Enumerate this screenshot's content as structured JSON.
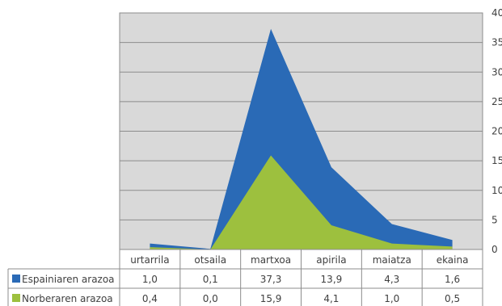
{
  "chart_data": {
    "type": "area",
    "categories": [
      "urtarrila",
      "otsaila",
      "martxoa",
      "apirila",
      "maiatza",
      "ekaina"
    ],
    "series": [
      {
        "name": "Espainiaren arazoa",
        "values": [
          1.0,
          0.1,
          37.3,
          13.9,
          4.3,
          1.6
        ],
        "display": [
          "1,0",
          "0,1",
          "37,3",
          "13,9",
          "4,3",
          "1,6"
        ],
        "color": "#2a6ab6"
      },
      {
        "name": "Norberaren arazoa",
        "values": [
          0.4,
          0.0,
          15.9,
          4.1,
          1.0,
          0.5
        ],
        "display": [
          "0,4",
          "0,0",
          "15,9",
          "4,1",
          "1,0",
          "0,5"
        ],
        "color": "#9dc03e"
      }
    ],
    "ylim": [
      0,
      40
    ],
    "y_ticks": [
      "0",
      "5",
      "10",
      "15",
      "20",
      "25",
      "30",
      "35",
      "40"
    ],
    "grid": true,
    "plot_background": "#d9d9d9",
    "legend": "data-table"
  }
}
